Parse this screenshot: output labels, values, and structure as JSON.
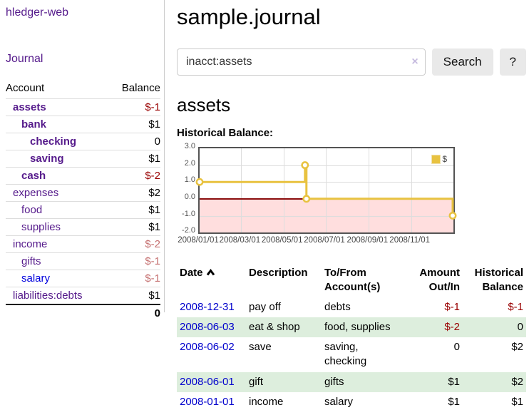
{
  "sidebar": {
    "brand": "hledger-web",
    "nav_journal": "Journal",
    "table": {
      "col_account": "Account",
      "col_balance": "Balance",
      "total": "0"
    },
    "accounts": [
      {
        "name": "assets",
        "balance": "$-1",
        "name_cls": "lvl1 bold",
        "bal_cls": "neg bold"
      },
      {
        "name": "bank",
        "balance": "$1",
        "name_cls": "lvl2 bold",
        "bal_cls": "bold"
      },
      {
        "name": "checking",
        "balance": "0",
        "name_cls": "lvl3 bold",
        "bal_cls": "bold"
      },
      {
        "name": "saving",
        "balance": "$1",
        "name_cls": "lvl3 bold",
        "bal_cls": "bold"
      },
      {
        "name": "cash",
        "balance": "$-2",
        "name_cls": "lvl2 bold",
        "bal_cls": "neg bold"
      },
      {
        "name": "expenses",
        "balance": "$2",
        "name_cls": "lvl1",
        "bal_cls": "bold"
      },
      {
        "name": "food",
        "balance": "$1",
        "name_cls": "lvl2",
        "bal_cls": "bold"
      },
      {
        "name": "supplies",
        "balance": "$1",
        "name_cls": "lvl2",
        "bal_cls": "bold"
      },
      {
        "name": "income",
        "balance": "$-2",
        "name_cls": "lvl1",
        "bal_cls": "negsoft"
      },
      {
        "name": "gifts",
        "balance": "$-1",
        "name_cls": "lvl2",
        "bal_cls": "negsoft"
      },
      {
        "name": "salary",
        "balance": "$-1",
        "name_cls": "lvl2 blue",
        "bal_cls": "negsoft"
      },
      {
        "name": "liabilities:debts",
        "balance": "$1",
        "name_cls": "lvl1",
        "bal_cls": "bold"
      }
    ]
  },
  "main": {
    "title": "sample.journal",
    "search": {
      "value": "inacct:assets",
      "placeholder": "",
      "clear_icon": "×",
      "button": "Search",
      "help_button": "?"
    },
    "account_heading": "assets"
  },
  "chart_data": {
    "type": "line",
    "title": "Historical Balance:",
    "step": true,
    "series": [
      {
        "name": "$",
        "color": "#e8c240",
        "points": [
          [
            "2008-01-01",
            1
          ],
          [
            "2008-06-01",
            2
          ],
          [
            "2008-06-03",
            0
          ],
          [
            "2008-12-31",
            -1
          ]
        ]
      }
    ],
    "x_range": [
      "2008-01-01",
      "2009-01-01"
    ],
    "x_tick_labels": [
      "2008/01/01",
      "2008/03/01",
      "2008/05/01",
      "2008/07/01",
      "2008/09/01",
      "2008/11/01"
    ],
    "y_ticks": [
      3.0,
      2.0,
      1.0,
      0.0,
      -1.0,
      -2.0
    ],
    "ylim": [
      -2,
      3
    ],
    "grid": true,
    "legend_position": "top-right",
    "negative_fill": "#ffdede",
    "zero_line_color": "#8b0e0e"
  },
  "journal": {
    "columns": {
      "date": "Date",
      "description": "Description",
      "tofrom": "To/From Account(s)",
      "amount": "Amount Out/In",
      "balance": "Historical Balance"
    },
    "rows": [
      {
        "date": "2008-12-31",
        "description": "pay off",
        "accounts": "debts",
        "amount": "$-1",
        "balance": "$-1",
        "amount_cls": "neg",
        "balance_cls": "neg"
      },
      {
        "date": "2008-06-03",
        "description": "eat & shop",
        "accounts": "food, supplies",
        "amount": "$-2",
        "balance": "0",
        "amount_cls": "neg",
        "balance_cls": ""
      },
      {
        "date": "2008-06-02",
        "description": "save",
        "accounts": "saving, checking",
        "amount": "0",
        "balance": "$2",
        "amount_cls": "",
        "balance_cls": ""
      },
      {
        "date": "2008-06-01",
        "description": "gift",
        "accounts": "gifts",
        "amount": "$1",
        "balance": "$2",
        "amount_cls": "",
        "balance_cls": ""
      },
      {
        "date": "2008-01-01",
        "description": "income",
        "accounts": "salary",
        "amount": "$1",
        "balance": "$1",
        "amount_cls": "",
        "balance_cls": ""
      }
    ]
  },
  "colors": {
    "link_purple": "#551a8b",
    "link_blue": "#0000dd",
    "date_link_blue": "#0000cc",
    "negative_red": "#990000",
    "negative_soft": "#c57070",
    "row_green": "#ddeedd",
    "chart_line_yellow": "#e8c240",
    "chart_negative_pink": "#ffdede",
    "chart_zero_line": "#8b0e0e"
  }
}
